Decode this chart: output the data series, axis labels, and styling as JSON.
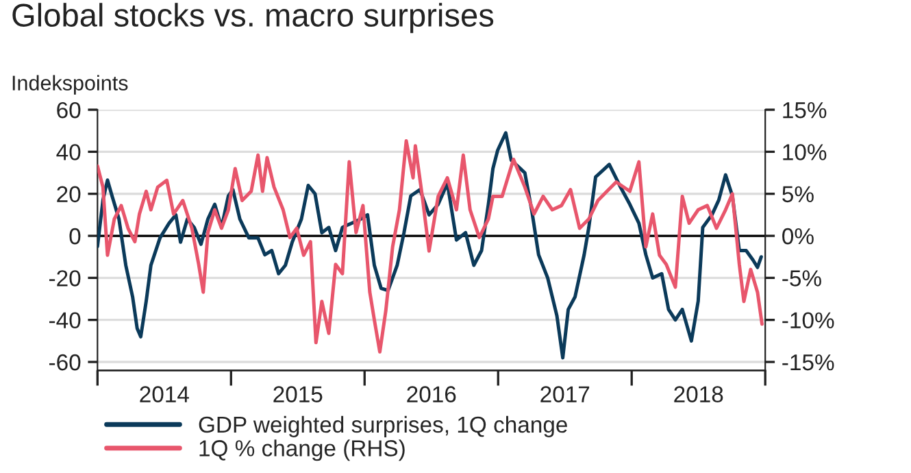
{
  "chart_data": {
    "type": "line",
    "title": "Global stocks vs. macro surprises",
    "ylabel": "Indekspoints",
    "xlim": [
      2014,
      2019
    ],
    "xticks": [
      {
        "value": 2014,
        "label": null
      },
      {
        "value": 2014.5,
        "label": "2014"
      },
      {
        "value": 2015,
        "label": null
      },
      {
        "value": 2015.5,
        "label": "2015"
      },
      {
        "value": 2016,
        "label": null
      },
      {
        "value": 2016.5,
        "label": "2016"
      },
      {
        "value": 2017,
        "label": null
      },
      {
        "value": 2017.5,
        "label": "2017"
      },
      {
        "value": 2018,
        "label": null
      },
      {
        "value": 2018.5,
        "label": "2018"
      },
      {
        "value": 2019,
        "label": null
      }
    ],
    "ylim": [
      -64,
      60
    ],
    "yticks": [
      -60,
      -40,
      -20,
      0,
      20,
      40,
      60
    ],
    "y2lim": [
      -16,
      15
    ],
    "y2ticks": [
      {
        "value": -15,
        "label": "-15%"
      },
      {
        "value": -10,
        "label": "-10%"
      },
      {
        "value": -5,
        "label": "-5%"
      },
      {
        "value": 0,
        "label": "0%"
      },
      {
        "value": 5,
        "label": "5%"
      },
      {
        "value": 10,
        "label": "10%"
      },
      {
        "value": 15,
        "label": "15%"
      }
    ],
    "grid": "y",
    "legend": "bottom left",
    "ref_lines": [
      {
        "axis": "y",
        "value": 0,
        "color": "#000000"
      }
    ],
    "series": [
      {
        "name": "GDP weighted surprises, 1Q change",
        "color": "#0b3a5a",
        "x": [
          2014.0,
          2014.041,
          2014.075,
          2014.109,
          2014.161,
          2014.212,
          2014.263,
          2014.297,
          2014.324,
          2014.365,
          2014.4,
          2014.468,
          2014.536,
          2014.587,
          2014.622,
          2014.673,
          2014.724,
          2014.775,
          2014.827,
          2014.878,
          2014.929,
          2014.98,
          2015.014,
          2015.066,
          2015.134,
          2015.202,
          2015.253,
          2015.305,
          2015.356,
          2015.407,
          2015.458,
          2015.527,
          2015.578,
          2015.629,
          2015.68,
          2015.732,
          2015.783,
          2015.834,
          2015.902,
          2015.971,
          2016.022,
          2016.073,
          2016.124,
          2016.176,
          2016.244,
          2016.295,
          2016.346,
          2016.415,
          2016.483,
          2016.551,
          2016.62,
          2016.688,
          2016.756,
          2016.818,
          2016.876,
          2016.927,
          2016.961,
          2016.996,
          2017.057,
          2017.098,
          2017.2,
          2017.252,
          2017.303,
          2017.371,
          2017.44,
          2017.484,
          2017.525,
          2017.576,
          2017.644,
          2017.679,
          2017.73,
          2017.832,
          2017.918,
          2017.986,
          2018.054,
          2018.106,
          2018.157,
          2018.225,
          2018.276,
          2018.327,
          2018.379,
          2018.447,
          2018.498,
          2018.532,
          2018.601,
          2018.652,
          2018.703,
          2018.754,
          2018.806,
          2018.857,
          2018.908,
          2018.942,
          2018.97
        ],
        "values": [
          -5,
          17,
          26.5,
          19,
          8,
          -14,
          -29,
          -44,
          -48,
          -31,
          -14,
          -1,
          6,
          10,
          -3,
          8,
          4,
          -4,
          8,
          15,
          4,
          19,
          22,
          8,
          -1,
          -1,
          -9,
          -7,
          -18,
          -14,
          -3,
          8,
          24,
          20,
          1.5,
          4,
          -7,
          4,
          6,
          8,
          10,
          -14,
          -25,
          -26,
          -14,
          1.5,
          19,
          22,
          10,
          15,
          25,
          -2,
          1.5,
          -14,
          -7,
          15,
          32,
          40.6,
          49,
          36,
          30,
          12,
          -9,
          -20,
          -38,
          -58,
          -35,
          -29,
          -9,
          4,
          28,
          34,
          23,
          15,
          6,
          -9,
          -20,
          -18,
          -35,
          -40,
          -35,
          -50,
          -31,
          4,
          10,
          17,
          29,
          19,
          -7,
          -7,
          -11.5,
          -15,
          -10
        ]
      },
      {
        "name": "1Q % change (RHS)",
        "color": "#e8566c",
        "axis": "y2",
        "x": [
          2014.0,
          2014.041,
          2014.075,
          2014.126,
          2014.178,
          2014.229,
          2014.28,
          2014.314,
          2014.365,
          2014.4,
          2014.451,
          2014.519,
          2014.57,
          2014.639,
          2014.707,
          2014.758,
          2014.792,
          2014.827,
          2014.878,
          2014.929,
          2014.98,
          2015.031,
          2015.083,
          2015.151,
          2015.202,
          2015.236,
          2015.27,
          2015.322,
          2015.39,
          2015.441,
          2015.492,
          2015.544,
          2015.595,
          2015.636,
          2015.68,
          2015.732,
          2015.783,
          2015.834,
          2015.885,
          2015.936,
          2015.988,
          2016.039,
          2016.073,
          2016.114,
          2016.159,
          2016.21,
          2016.261,
          2016.312,
          2016.363,
          2016.38,
          2016.432,
          2016.483,
          2016.551,
          2016.62,
          2016.688,
          2016.739,
          2016.79,
          2016.859,
          2016.927,
          2016.961,
          2017.03,
          2017.115,
          2017.2,
          2017.269,
          2017.337,
          2017.405,
          2017.474,
          2017.542,
          2017.61,
          2017.679,
          2017.747,
          2017.815,
          2017.884,
          2017.986,
          2018.054,
          2018.106,
          2018.157,
          2018.208,
          2018.259,
          2018.327,
          2018.379,
          2018.43,
          2018.498,
          2018.566,
          2018.635,
          2018.703,
          2018.754,
          2018.806,
          2018.84,
          2018.891,
          2018.942,
          2018.976
        ],
        "values": [
          8.3,
          5.8,
          -2.3,
          2,
          3.6,
          0.9,
          -0.7,
          2.6,
          5.3,
          3.1,
          5.8,
          6.6,
          2.6,
          4.2,
          0.9,
          -3.4,
          -6.7,
          0.4,
          3.1,
          0.9,
          3.1,
          8,
          4.2,
          5.3,
          9.6,
          5.3,
          9.3,
          5.8,
          3.1,
          -0.2,
          0.9,
          -2.3,
          -0.7,
          -12.7,
          -7.8,
          -11.6,
          -3.4,
          -4.5,
          8.8,
          0.4,
          3.6,
          -6.7,
          -10,
          -13.8,
          -8.9,
          -1.3,
          3.1,
          11.3,
          6.9,
          10.7,
          4.7,
          -1.8,
          4.7,
          6.9,
          3.1,
          9.6,
          3.1,
          -0.2,
          2,
          4.7,
          4.7,
          9.1,
          5.8,
          2.6,
          4.7,
          3.1,
          3.6,
          5.5,
          0.9,
          2,
          4.2,
          5.3,
          6.4,
          5.3,
          8.8,
          -1.3,
          2.6,
          -2.3,
          -3.4,
          -6.1,
          4.7,
          1.5,
          3.1,
          3.6,
          0.9,
          3.1,
          5,
          -3.4,
          -7.8,
          -4,
          -6.7,
          -10.5
        ]
      }
    ]
  }
}
